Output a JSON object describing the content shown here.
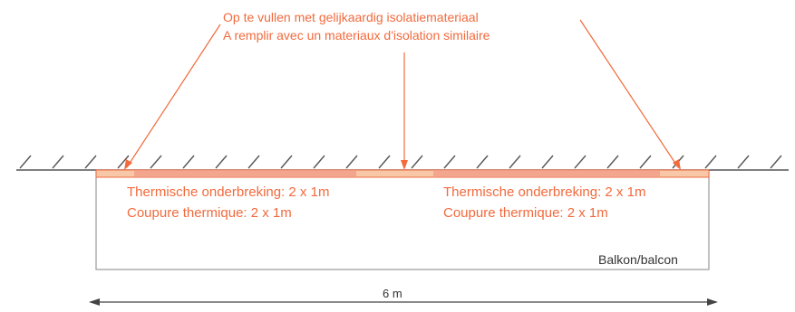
{
  "diagram": {
    "note_nl": "Op te vullen met gelijkaardig isolatiemateriaal",
    "note_fr": "A remplir avec un materiaux d'isolation similaire",
    "left_break": {
      "line_nl": "Thermische onderbreking: 2 x 1m",
      "line_fr": "Coupure thermique: 2 x 1m"
    },
    "right_break": {
      "line_nl": "Thermische onderbreking: 2 x 1m",
      "line_fr": "Coupure thermique: 2 x 1m"
    },
    "balcony_label": "Balkon/balcon",
    "dimension_label": "6 m",
    "colors": {
      "accent": "#f26a3d",
      "insulation_strip": "#f7c7a8",
      "outline": "#9a9a9a",
      "hatch": "#555555",
      "text_dark": "#333333"
    }
  }
}
